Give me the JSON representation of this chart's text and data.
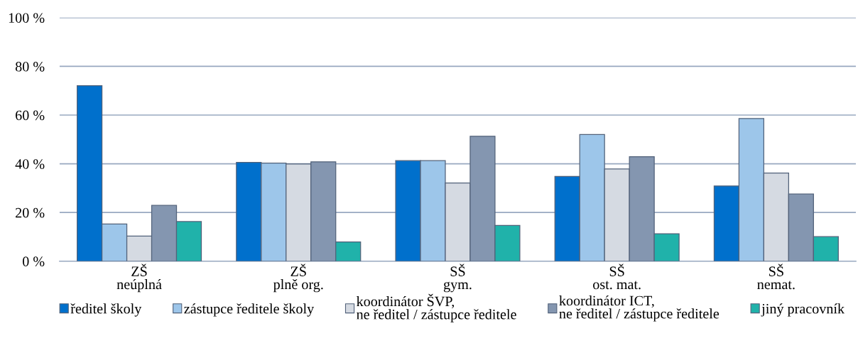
{
  "chart_data": {
    "type": "bar",
    "categories": [
      "ZŠ\nneúplná",
      "ZŠ\nplně org.",
      "SŠ\ngym.",
      "SŠ\nost. mat.",
      "SŠ\nnemat."
    ],
    "series": [
      {
        "name": "ředitel školy",
        "color": "#0070cc",
        "values": [
          72.1,
          40.6,
          41.3,
          34.8,
          30.9
        ]
      },
      {
        "name": "zástupce ředitele školy",
        "color": "#9dc6ea",
        "values": [
          15.3,
          40.3,
          41.3,
          52.0,
          58.6
        ]
      },
      {
        "name": "koordinátor ŠVP,\nne ředitel / zástupce ředitele",
        "color": "#d5dae2",
        "values": [
          10.3,
          39.9,
          32.1,
          37.9,
          36.2
        ]
      },
      {
        "name": "koordinátor ICT,\nne ředitel / zástupce ředitele",
        "color": "#8496b0",
        "values": [
          22.9,
          40.8,
          51.3,
          42.9,
          27.6
        ]
      },
      {
        "name": "jiný pracovník",
        "color": "#20b2aa",
        "values": [
          16.3,
          7.9,
          14.7,
          11.3,
          10.1
        ]
      }
    ],
    "ylim": [
      0,
      100
    ],
    "yticks": [
      {
        "value": 0,
        "label": "0 %"
      },
      {
        "value": 20,
        "label": "20 %"
      },
      {
        "value": 40,
        "label": "40 %"
      },
      {
        "value": 60,
        "label": "60 %"
      },
      {
        "value": 80,
        "label": "80 %"
      },
      {
        "value": 100,
        "label": "100 %"
      }
    ],
    "grid": "y",
    "legend": "bottom"
  }
}
